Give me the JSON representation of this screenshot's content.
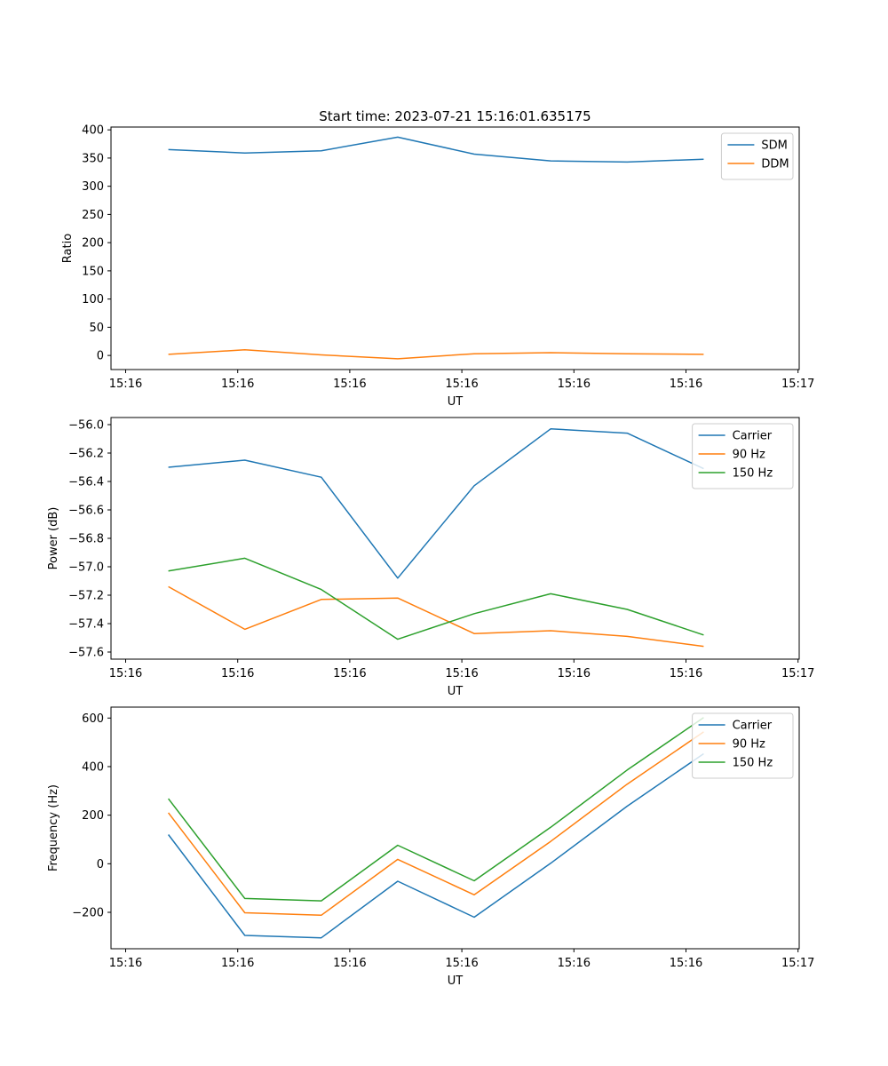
{
  "figure": {
    "title": "Start time: 2023-07-21 15:16:01.635175"
  },
  "chart_data": [
    {
      "type": "line",
      "id": "ratio",
      "title": "Start time: 2023-07-21 15:16:01.635175",
      "xlabel": "UT",
      "ylabel": "Ratio",
      "x_ticks": [
        "15:16",
        "15:16",
        "15:16",
        "15:16",
        "15:16",
        "15:16",
        "15:17"
      ],
      "x": [
        1,
        2,
        3,
        4,
        5,
        6,
        7,
        8
      ],
      "xlim": [
        0.25,
        9.25
      ],
      "ylim": [
        -25,
        405
      ],
      "y_ticks": [
        0,
        50,
        100,
        150,
        200,
        250,
        300,
        350,
        400
      ],
      "y_tick_labels": [
        "0",
        "50",
        "100",
        "150",
        "200",
        "250",
        "300",
        "350",
        "400"
      ],
      "legend": "top-right",
      "series": [
        {
          "name": "SDM",
          "color": "#1f77b4",
          "values": [
            365,
            359,
            363,
            387,
            357,
            345,
            343,
            348
          ]
        },
        {
          "name": "DDM",
          "color": "#ff7f0e",
          "values": [
            2,
            10,
            1,
            -6,
            3,
            5,
            3,
            2
          ]
        }
      ]
    },
    {
      "type": "line",
      "id": "power",
      "xlabel": "UT",
      "ylabel": "Power (dB)",
      "x_ticks": [
        "15:16",
        "15:16",
        "15:16",
        "15:16",
        "15:16",
        "15:16",
        "15:17"
      ],
      "x": [
        1,
        2,
        3,
        4,
        5,
        6,
        7,
        8
      ],
      "xlim": [
        0.25,
        9.25
      ],
      "ylim": [
        -57.65,
        -55.95
      ],
      "y_ticks": [
        -56.0,
        -56.2,
        -56.4,
        -56.6,
        -56.8,
        -57.0,
        -57.2,
        -57.4,
        -57.6
      ],
      "y_tick_labels": [
        "−56.0",
        "−56.2",
        "−56.4",
        "−56.6",
        "−56.8",
        "−57.0",
        "−57.2",
        "−57.4",
        "−57.6"
      ],
      "legend": "top-right",
      "series": [
        {
          "name": "Carrier",
          "color": "#1f77b4",
          "values": [
            -56.3,
            -56.25,
            -56.37,
            -57.08,
            -56.43,
            -56.03,
            -56.06,
            -56.31
          ]
        },
        {
          "name": "90 Hz",
          "color": "#ff7f0e",
          "values": [
            -57.14,
            -57.44,
            -57.23,
            -57.22,
            -57.47,
            -57.45,
            -57.49,
            -57.56
          ]
        },
        {
          "name": "150 Hz",
          "color": "#2ca02c",
          "values": [
            -57.03,
            -56.94,
            -57.16,
            -57.51,
            -57.33,
            -57.19,
            -57.3,
            -57.48
          ]
        }
      ]
    },
    {
      "type": "line",
      "id": "frequency",
      "xlabel": "UT",
      "ylabel": "Frequency (Hz)",
      "x_ticks": [
        "15:16",
        "15:16",
        "15:16",
        "15:16",
        "15:16",
        "15:16",
        "15:17"
      ],
      "x": [
        1,
        2,
        3,
        4,
        5,
        6,
        7,
        8
      ],
      "xlim": [
        0.25,
        9.25
      ],
      "ylim": [
        -350,
        645
      ],
      "y_ticks": [
        -200,
        0,
        200,
        400,
        600
      ],
      "y_tick_labels": [
        "−200",
        "0",
        "200",
        "400",
        "600"
      ],
      "legend": "top-right",
      "series": [
        {
          "name": "Carrier",
          "color": "#1f77b4",
          "values": [
            120,
            -295,
            -305,
            -72,
            -220,
            2,
            237,
            453
          ]
        },
        {
          "name": "90 Hz",
          "color": "#ff7f0e",
          "values": [
            210,
            -202,
            -212,
            18,
            -128,
            92,
            328,
            543
          ]
        },
        {
          "name": "150 Hz",
          "color": "#2ca02c",
          "values": [
            268,
            -143,
            -153,
            76,
            -70,
            150,
            386,
            602
          ]
        }
      ]
    }
  ]
}
